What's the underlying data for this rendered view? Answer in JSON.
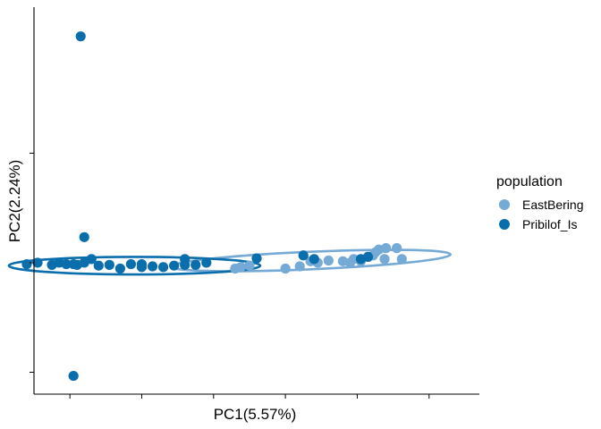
{
  "chart_data": {
    "type": "scatter",
    "title": "",
    "xlabel": "PC1(5.57%)",
    "ylabel": "PC2(2.24%)",
    "xlim": [
      -0.5,
      5.7
    ],
    "ylim": [
      -1.8,
      3.5
    ],
    "x_ticks": [
      0,
      1,
      2,
      3,
      4,
      5,
      6
    ],
    "y_ticks": [
      -1.5,
      0,
      1.5
    ],
    "tick_labels_visible": false,
    "grid": false,
    "legend": {
      "title": "population",
      "position": "right",
      "entries": [
        "EastBering",
        "Pribilof_Is"
      ]
    },
    "colors": {
      "EastBering": "#75a9d6",
      "Pribilof_Is": "#0a6eac"
    },
    "series": [
      {
        "name": "EastBering",
        "points": [
          [
            2.3,
            -0.08
          ],
          [
            2.38,
            -0.06
          ],
          [
            2.5,
            -0.04
          ],
          [
            3.0,
            -0.08
          ],
          [
            3.2,
            -0.05
          ],
          [
            3.35,
            0.02
          ],
          [
            3.45,
            0.0
          ],
          [
            3.6,
            0.03
          ],
          [
            3.8,
            0.02
          ],
          [
            3.95,
            0.05
          ],
          [
            4.05,
            0.02
          ],
          [
            4.15,
            0.08
          ],
          [
            4.22,
            0.1
          ],
          [
            4.25,
            0.14
          ],
          [
            4.3,
            0.18
          ],
          [
            4.4,
            0.2
          ],
          [
            4.55,
            0.2
          ],
          [
            4.62,
            0.05
          ],
          [
            4.38,
            0.05
          ],
          [
            3.9,
            0.0
          ]
        ],
        "ellipse": {
          "cx": 3.35,
          "cy": 0.03,
          "rx": 1.95,
          "ry": 0.12,
          "angle_deg": -2.5
        }
      },
      {
        "name": "Pribilof_Is",
        "points": [
          [
            0.15,
            3.1
          ],
          [
            0.05,
            -1.55
          ],
          [
            0.2,
            0.35
          ],
          [
            0.3,
            0.05
          ],
          [
            -0.45,
            0.0
          ],
          [
            -0.25,
            -0.03
          ],
          [
            -0.15,
            0.0
          ],
          [
            -0.05,
            -0.02
          ],
          [
            0.05,
            -0.02
          ],
          [
            0.1,
            -0.03
          ],
          [
            0.2,
            0.0
          ],
          [
            0.4,
            -0.04
          ],
          [
            0.55,
            -0.03
          ],
          [
            0.7,
            -0.08
          ],
          [
            0.85,
            -0.02
          ],
          [
            1.0,
            -0.06
          ],
          [
            1.15,
            -0.05
          ],
          [
            1.3,
            -0.06
          ],
          [
            1.45,
            -0.04
          ],
          [
            1.6,
            0.05
          ],
          [
            1.75,
            -0.03
          ],
          [
            1.9,
            0.0
          ],
          [
            2.6,
            0.06
          ],
          [
            3.25,
            0.1
          ],
          [
            3.4,
            0.05
          ],
          [
            4.05,
            0.05
          ],
          [
            4.15,
            0.08
          ],
          [
            -0.6,
            -0.02
          ],
          [
            1.6,
            -0.03
          ],
          [
            1.0,
            -0.02
          ]
        ],
        "ellipse": {
          "cx": 0.9,
          "cy": -0.04,
          "rx": 1.75,
          "ry": 0.12,
          "angle_deg": 0
        }
      }
    ]
  }
}
